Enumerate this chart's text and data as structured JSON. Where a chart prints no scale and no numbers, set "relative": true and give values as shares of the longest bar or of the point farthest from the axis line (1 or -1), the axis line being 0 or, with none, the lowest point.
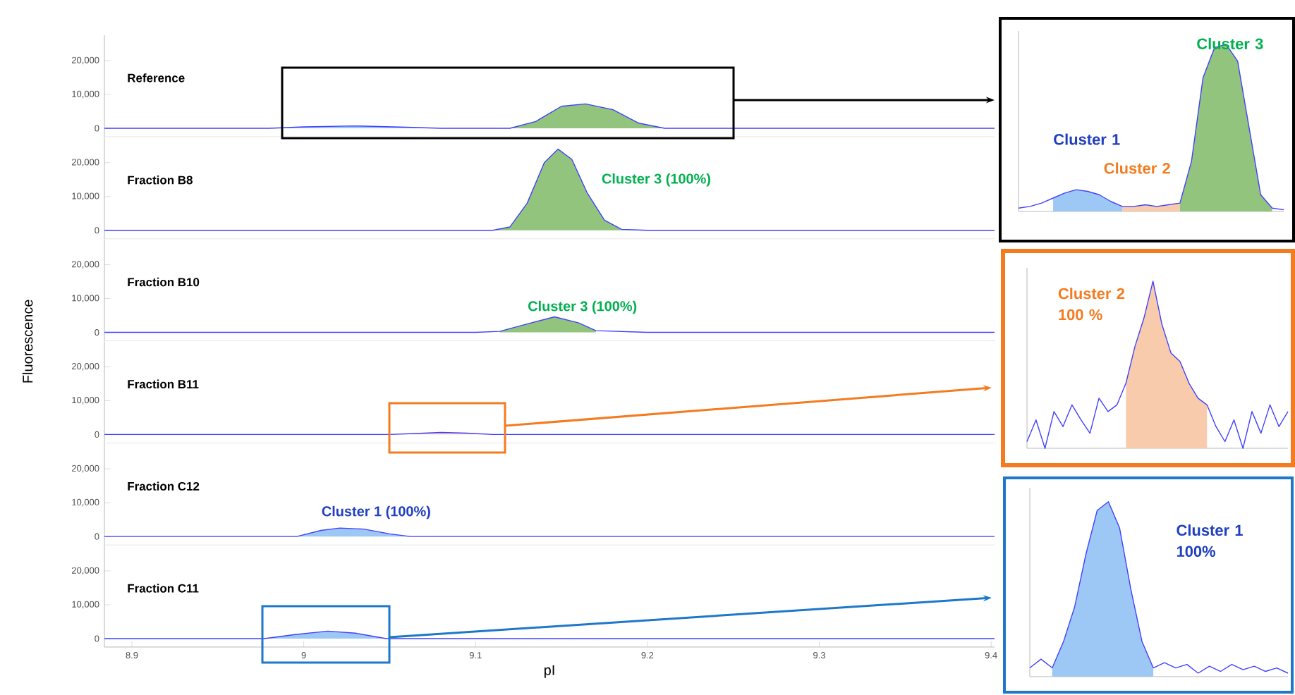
{
  "chart_data": [
    {
      "type": "line",
      "title": "Reference",
      "xlim": [
        8.884,
        9.402
      ],
      "ylim": [
        -2500,
        27500
      ],
      "tick_labels": "y",
      "yticks": [
        {
          "value": 0,
          "label": "0"
        },
        {
          "value": 10000,
          "label": "10,000"
        },
        {
          "value": 20000,
          "label": "20,000"
        }
      ],
      "series": [
        {
          "type": "area",
          "color": "#9dc8f5",
          "x": [
            8.98,
            9.0,
            9.03,
            9.06,
            9.08
          ],
          "values": [
            0,
            400,
            700,
            300,
            0
          ]
        },
        {
          "type": "area",
          "color": "#93c47d",
          "x": [
            9.12,
            9.135,
            9.15,
            9.164,
            9.18,
            9.195,
            9.21
          ],
          "values": [
            0,
            2000,
            6500,
            7200,
            5500,
            1500,
            0
          ]
        },
        {
          "type": "line",
          "color": "#4040ff",
          "x": [
            8.884,
            8.95,
            8.98,
            9.0,
            9.03,
            9.06,
            9.08,
            9.12,
            9.135,
            9.15,
            9.164,
            9.18,
            9.195,
            9.21,
            9.3,
            9.402
          ],
          "values": [
            0,
            0,
            0,
            400,
            700,
            300,
            0,
            0,
            2000,
            6500,
            7200,
            5500,
            1500,
            0,
            0,
            0
          ]
        }
      ]
    },
    {
      "type": "line",
      "title": "Fraction B8",
      "xlim": [
        8.884,
        9.402
      ],
      "ylim": [
        -2500,
        27500
      ],
      "tick_labels": "y",
      "yticks": [
        {
          "value": 0,
          "label": "0"
        },
        {
          "value": 10000,
          "label": "10,000"
        },
        {
          "value": 20000,
          "label": "20,000"
        }
      ],
      "annotations": [
        {
          "text": "Cluster 3 (100%)",
          "x": 9.168,
          "y": 9000
        }
      ],
      "series": [
        {
          "type": "area",
          "color": "#93c47d",
          "x": [
            9.11,
            9.12,
            9.13,
            9.14,
            9.148,
            9.156,
            9.165,
            9.175,
            9.185,
            9.2
          ],
          "values": [
            0,
            1000,
            8000,
            20000,
            24000,
            21000,
            11000,
            3000,
            300,
            0
          ]
        },
        {
          "type": "line",
          "color": "#4040ff",
          "x": [
            8.884,
            9.0,
            9.11,
            9.12,
            9.13,
            9.14,
            9.148,
            9.156,
            9.165,
            9.175,
            9.185,
            9.2,
            9.3,
            9.402
          ],
          "values": [
            0,
            0,
            0,
            1000,
            8000,
            20000,
            24000,
            21000,
            11000,
            3000,
            300,
            0,
            0,
            0
          ]
        }
      ]
    },
    {
      "type": "line",
      "title": "Fraction B10",
      "xlim": [
        8.884,
        9.402
      ],
      "ylim": [
        -2500,
        27500
      ],
      "tick_labels": "y",
      "yticks": [
        {
          "value": 0,
          "label": "0"
        },
        {
          "value": 10000,
          "label": "10,000"
        },
        {
          "value": 20000,
          "label": "20,000"
        }
      ],
      "annotations": [
        {
          "text": "Cluster 3 (100%)",
          "x": 9.125,
          "y": 1500
        }
      ],
      "series": [
        {
          "type": "area",
          "color": "#93c47d",
          "x": [
            9.114,
            9.13,
            9.146,
            9.16,
            9.17
          ],
          "values": [
            300,
            2500,
            4600,
            2800,
            500
          ]
        },
        {
          "type": "line",
          "color": "#4040ff",
          "x": [
            8.884,
            9.0,
            9.1,
            9.114,
            9.13,
            9.146,
            9.16,
            9.17,
            9.2,
            9.3,
            9.402
          ],
          "values": [
            0,
            0,
            0,
            300,
            2500,
            4600,
            2800,
            500,
            0,
            0,
            0
          ]
        }
      ]
    },
    {
      "type": "line",
      "title": "Fraction B11",
      "ylabel": "Fluorescence",
      "xlim": [
        8.884,
        9.402
      ],
      "ylim": [
        -2500,
        27500
      ],
      "tick_labels": "y",
      "yticks": [
        {
          "value": 0,
          "label": "0"
        },
        {
          "value": 10000,
          "label": "10,000"
        },
        {
          "value": 20000,
          "label": "20,000"
        }
      ],
      "series": [
        {
          "type": "area",
          "color": "#f8cbad",
          "x": [
            9.05,
            9.07,
            9.08,
            9.095,
            9.11
          ],
          "values": [
            0,
            400,
            600,
            400,
            0
          ]
        },
        {
          "type": "line",
          "color": "#4040ff",
          "x": [
            8.884,
            9.0,
            9.05,
            9.07,
            9.08,
            9.095,
            9.11,
            9.2,
            9.3,
            9.402
          ],
          "values": [
            0,
            0,
            0,
            400,
            600,
            400,
            0,
            0,
            0,
            0
          ]
        }
      ]
    },
    {
      "type": "line",
      "title": "Fraction C12",
      "xlim": [
        8.884,
        9.402
      ],
      "ylim": [
        -2500,
        27500
      ],
      "tick_labels": "y",
      "yticks": [
        {
          "value": 0,
          "label": "0"
        },
        {
          "value": 10000,
          "label": "10,000"
        },
        {
          "value": 20000,
          "label": "20,000"
        }
      ],
      "annotations": [
        {
          "text": "Cluster 1 (100%)",
          "x": 9.005,
          "y": 1200
        }
      ],
      "series": [
        {
          "type": "area",
          "color": "#9dc8f5",
          "x": [
            8.996,
            9.01,
            9.021,
            9.035,
            9.05,
            9.062
          ],
          "values": [
            0,
            1800,
            2500,
            2200,
            800,
            0
          ]
        },
        {
          "type": "line",
          "color": "#4040ff",
          "x": [
            8.884,
            8.95,
            8.996,
            9.01,
            9.021,
            9.035,
            9.05,
            9.062,
            9.1,
            9.2,
            9.3,
            9.402
          ],
          "values": [
            0,
            0,
            0,
            1800,
            2500,
            2200,
            800,
            0,
            0,
            0,
            0,
            0
          ]
        }
      ]
    },
    {
      "type": "line",
      "title": "Fraction C11",
      "xlabel": "pI",
      "xlim": [
        8.884,
        9.402
      ],
      "ylim": [
        -2500,
        27500
      ],
      "xticks": [
        8.9,
        9,
        9.1,
        9.2,
        9.3,
        9.4
      ],
      "yticks": [
        {
          "value": 0,
          "label": "0"
        },
        {
          "value": 10000,
          "label": "10,000"
        },
        {
          "value": 20000,
          "label": "20,000"
        }
      ],
      "series": [
        {
          "type": "area",
          "color": "#9dc8f5",
          "x": [
            8.977,
            8.995,
            9.014,
            9.03,
            9.048
          ],
          "values": [
            0,
            1200,
            2200,
            1600,
            0
          ]
        },
        {
          "type": "line",
          "color": "#4040ff",
          "x": [
            8.884,
            8.95,
            8.977,
            8.995,
            9.014,
            9.03,
            9.048,
            9.1,
            9.2,
            9.3,
            9.402
          ],
          "values": [
            0,
            0,
            0,
            1200,
            2200,
            1600,
            0,
            0,
            0,
            0,
            0
          ]
        }
      ]
    },
    {
      "type": "line",
      "relative": true,
      "tick_labels": false,
      "categories": [
        null,
        null,
        null,
        null,
        null,
        null,
        null,
        null,
        null,
        null,
        null,
        null,
        null,
        null,
        null,
        null,
        null,
        null,
        null,
        null,
        null,
        null,
        null,
        null
      ],
      "annotations": [
        "Cluster 1",
        "Cluster 2",
        "Cluster 3"
      ],
      "series": [
        {
          "type": "area",
          "color": "#9dc8f5",
          "values": [
            null,
            null,
            null,
            0.08,
            0.11,
            0.13,
            0.12,
            0.1,
            0.06,
            0.03,
            null,
            null,
            null,
            null,
            null,
            null,
            null,
            null,
            null,
            null,
            null,
            null,
            null,
            null
          ]
        },
        {
          "type": "area",
          "color": "#f8cbad",
          "values": [
            null,
            null,
            null,
            null,
            null,
            null,
            null,
            null,
            null,
            0.03,
            0.03,
            0.04,
            0.03,
            0.04,
            0.05,
            null,
            null,
            null,
            null,
            null,
            null,
            null,
            null,
            null
          ]
        },
        {
          "type": "area",
          "color": "#93c47d",
          "values": [
            null,
            null,
            null,
            null,
            null,
            null,
            null,
            null,
            null,
            null,
            null,
            null,
            null,
            null,
            0.05,
            0.3,
            0.8,
            0.98,
            1.0,
            0.9,
            0.5,
            0.1,
            0.02,
            null
          ]
        },
        {
          "type": "line",
          "color": "#4040ff",
          "values": [
            0.02,
            0.03,
            0.05,
            0.08,
            0.11,
            0.13,
            0.12,
            0.1,
            0.06,
            0.03,
            0.03,
            0.04,
            0.03,
            0.04,
            0.05,
            0.3,
            0.8,
            0.98,
            1.0,
            0.9,
            0.5,
            0.1,
            0.02,
            0.01
          ]
        }
      ]
    },
    {
      "type": "line",
      "relative": true,
      "tick_labels": false,
      "categories": [
        null,
        null,
        null,
        null,
        null,
        null,
        null,
        null,
        null,
        null,
        null,
        null,
        null,
        null,
        null,
        null,
        null,
        null,
        null,
        null,
        null,
        null,
        null,
        null,
        null,
        null,
        null,
        null,
        null,
        null
      ],
      "annotations": [
        "Cluster 2 100 %"
      ],
      "series": [
        {
          "type": "area",
          "color": "#f8cbad",
          "values": [
            null,
            null,
            null,
            null,
            null,
            null,
            null,
            null,
            null,
            null,
            null,
            0.39,
            0.61,
            0.78,
            1.0,
            0.74,
            0.57,
            0.52,
            0.39,
            0.3,
            0.26,
            null,
            null,
            null,
            null,
            null,
            null,
            null,
            null,
            null
          ]
        },
        {
          "type": "line",
          "color": "#4040ff",
          "values": [
            0.04,
            0.17,
            0,
            0.22,
            0.13,
            0.26,
            0.17,
            0.09,
            0.3,
            0.22,
            0.26,
            0.39,
            0.61,
            0.78,
            1.0,
            0.74,
            0.57,
            0.52,
            0.39,
            0.3,
            0.26,
            0.13,
            0.04,
            0.17,
            0,
            0.22,
            0.09,
            0.26,
            0.13,
            0.22
          ]
        }
      ]
    },
    {
      "type": "line",
      "relative": true,
      "tick_labels": false,
      "categories": [
        null,
        null,
        null,
        null,
        null,
        null,
        null,
        null,
        null,
        null,
        null,
        null,
        null,
        null,
        null,
        null,
        null,
        null,
        null,
        null,
        null,
        null,
        null,
        null
      ],
      "annotations": [
        "Cluster 1 100%"
      ],
      "series": [
        {
          "type": "area",
          "color": "#9dc8f5",
          "values": [
            null,
            null,
            0.05,
            0.2,
            0.4,
            0.7,
            0.95,
            1.0,
            0.85,
            0.5,
            0.2,
            0.05,
            null,
            null,
            null,
            null,
            null,
            null,
            null,
            null,
            null,
            null,
            null,
            null
          ]
        },
        {
          "type": "line",
          "color": "#4040ff",
          "values": [
            0.05,
            0.1,
            0.05,
            0.2,
            0.4,
            0.7,
            0.95,
            1.0,
            0.85,
            0.5,
            0.2,
            0.05,
            0.08,
            0.05,
            0.07,
            0.02,
            0.06,
            0.03,
            0.07,
            0.04,
            0.06,
            0.03,
            0.05,
            0.02
          ]
        }
      ]
    }
  ]
}
